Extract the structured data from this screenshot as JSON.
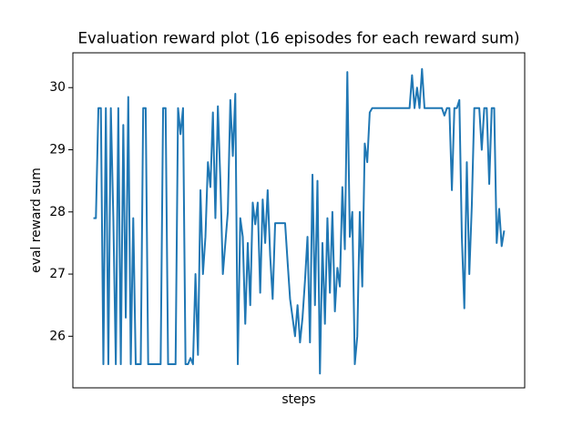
{
  "chart_data": {
    "type": "line",
    "title": "Evaluation reward plot (16 episodes for each reward sum)",
    "xlabel": "steps",
    "ylabel": "eval reward sum",
    "color": "#1f77b4",
    "xlim": [
      -8.25,
      173.25
    ],
    "ylim": [
      25.17,
      30.56
    ],
    "yticks": [
      26,
      27,
      28,
      29,
      30
    ],
    "values": [
      27.9,
      27.9,
      29.67,
      29.67,
      25.55,
      29.67,
      25.55,
      29.67,
      27.9,
      25.55,
      29.67,
      25.55,
      29.4,
      26.3,
      29.85,
      25.55,
      27.9,
      25.55,
      25.55,
      25.55,
      29.67,
      29.67,
      25.55,
      25.55,
      25.55,
      25.55,
      25.55,
      25.55,
      29.67,
      29.67,
      25.55,
      25.55,
      25.55,
      25.55,
      29.67,
      29.25,
      29.67,
      25.55,
      25.55,
      25.65,
      25.55,
      27.0,
      25.7,
      28.35,
      27.0,
      27.6,
      28.8,
      28.4,
      29.6,
      27.9,
      29.7,
      28.5,
      27.0,
      27.5,
      28.0,
      29.8,
      28.9,
      29.9,
      25.55,
      27.9,
      27.6,
      26.2,
      27.5,
      26.5,
      28.15,
      27.8,
      28.15,
      26.7,
      28.2,
      27.5,
      28.35,
      27.3,
      26.6,
      27.82,
      27.82,
      27.82,
      27.82,
      27.82,
      27.2,
      26.6,
      26.3,
      26.0,
      26.5,
      25.9,
      26.3,
      26.9,
      27.6,
      25.9,
      28.6,
      26.5,
      28.5,
      25.4,
      27.5,
      26.2,
      27.9,
      26.7,
      28.0,
      26.4,
      27.1,
      26.8,
      28.4,
      27.4,
      30.25,
      27.6,
      28.0,
      25.55,
      26.0,
      28.0,
      26.8,
      29.1,
      28.8,
      29.6,
      29.67,
      29.67,
      29.67,
      29.67,
      29.67,
      29.67,
      29.67,
      29.67,
      29.67,
      29.67,
      29.67,
      29.67,
      29.67,
      29.67,
      29.67,
      29.67,
      30.2,
      29.67,
      30.0,
      29.67,
      30.3,
      29.67,
      29.67,
      29.67,
      29.67,
      29.67,
      29.67,
      29.67,
      29.67,
      29.55,
      29.67,
      29.67,
      28.35,
      29.67,
      29.67,
      29.8,
      27.6,
      26.45,
      28.8,
      27.0,
      28.1,
      29.67,
      29.67,
      29.67,
      29.0,
      29.67,
      29.67,
      28.45,
      29.67,
      29.67,
      27.5,
      28.05,
      27.45,
      27.7
    ]
  }
}
